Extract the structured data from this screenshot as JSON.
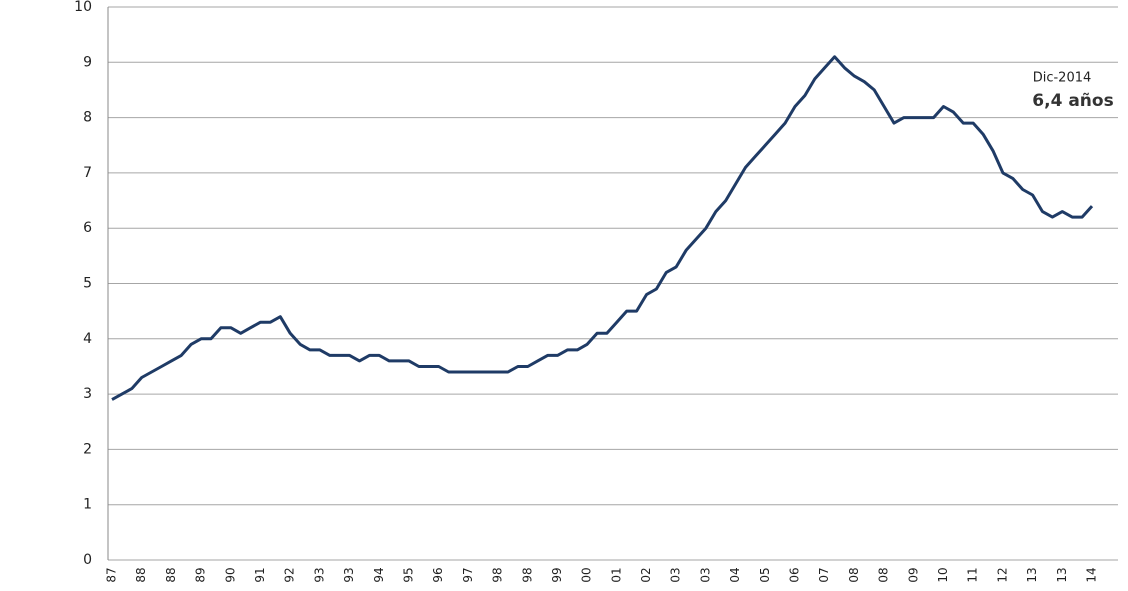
{
  "chart_data": {
    "type": "line",
    "categories": [
      "87",
      null,
      null,
      "88",
      null,
      null,
      "88",
      null,
      null,
      "89",
      null,
      null,
      "90",
      null,
      null,
      "91",
      null,
      null,
      "92",
      null,
      null,
      "93",
      null,
      null,
      "93",
      null,
      null,
      "94",
      null,
      null,
      "95",
      null,
      null,
      "96",
      null,
      null,
      "97",
      null,
      null,
      "98",
      null,
      null,
      "98",
      null,
      null,
      "99",
      null,
      null,
      "00",
      null,
      null,
      "01",
      null,
      null,
      "02",
      null,
      null,
      "03",
      null,
      null,
      "03",
      null,
      null,
      "04",
      null,
      null,
      "05",
      null,
      null,
      "06",
      null,
      null,
      "07",
      null,
      null,
      "08",
      null,
      null,
      "08",
      null,
      null,
      "09",
      null,
      null,
      "10",
      null,
      null,
      "11",
      null,
      null,
      "12",
      null,
      null,
      "13",
      null,
      null,
      "13",
      null,
      null,
      "14"
    ],
    "series": [
      {
        "color": "#1f3b66",
        "values": [
          2.9,
          3.0,
          3.1,
          3.3,
          3.4,
          3.5,
          3.6,
          3.7,
          3.9,
          4.0,
          4.0,
          4.2,
          4.2,
          4.1,
          4.2,
          4.3,
          4.3,
          4.4,
          4.1,
          3.9,
          3.8,
          3.8,
          3.7,
          3.7,
          3.7,
          3.6,
          3.7,
          3.7,
          3.6,
          3.6,
          3.6,
          3.5,
          3.5,
          3.5,
          3.4,
          3.4,
          3.4,
          3.4,
          3.4,
          3.4,
          3.4,
          3.5,
          3.5,
          3.6,
          3.7,
          3.7,
          3.8,
          3.8,
          3.9,
          4.1,
          4.1,
          4.3,
          4.5,
          4.5,
          4.8,
          4.9,
          5.2,
          5.3,
          5.6,
          5.8,
          6.0,
          6.3,
          6.5,
          6.8,
          7.1,
          7.3,
          7.5,
          7.7,
          7.9,
          8.2,
          8.4,
          8.7,
          8.9,
          9.1,
          8.9,
          8.75,
          8.65,
          8.5,
          8.2,
          7.9,
          8.0,
          8.0,
          8.0,
          8.0,
          8.2,
          8.1,
          7.9,
          7.9,
          7.7,
          7.4,
          7.0,
          6.9,
          6.7,
          6.6,
          6.3,
          6.2,
          6.3,
          6.2,
          6.2,
          6.4
        ]
      }
    ],
    "ylim": [
      0,
      10
    ],
    "yticks": [
      0,
      1,
      2,
      3,
      4,
      5,
      6,
      7,
      8,
      9,
      10
    ],
    "grid": true,
    "annotations": [
      "Dic-2014",
      "6,4 años"
    ]
  }
}
